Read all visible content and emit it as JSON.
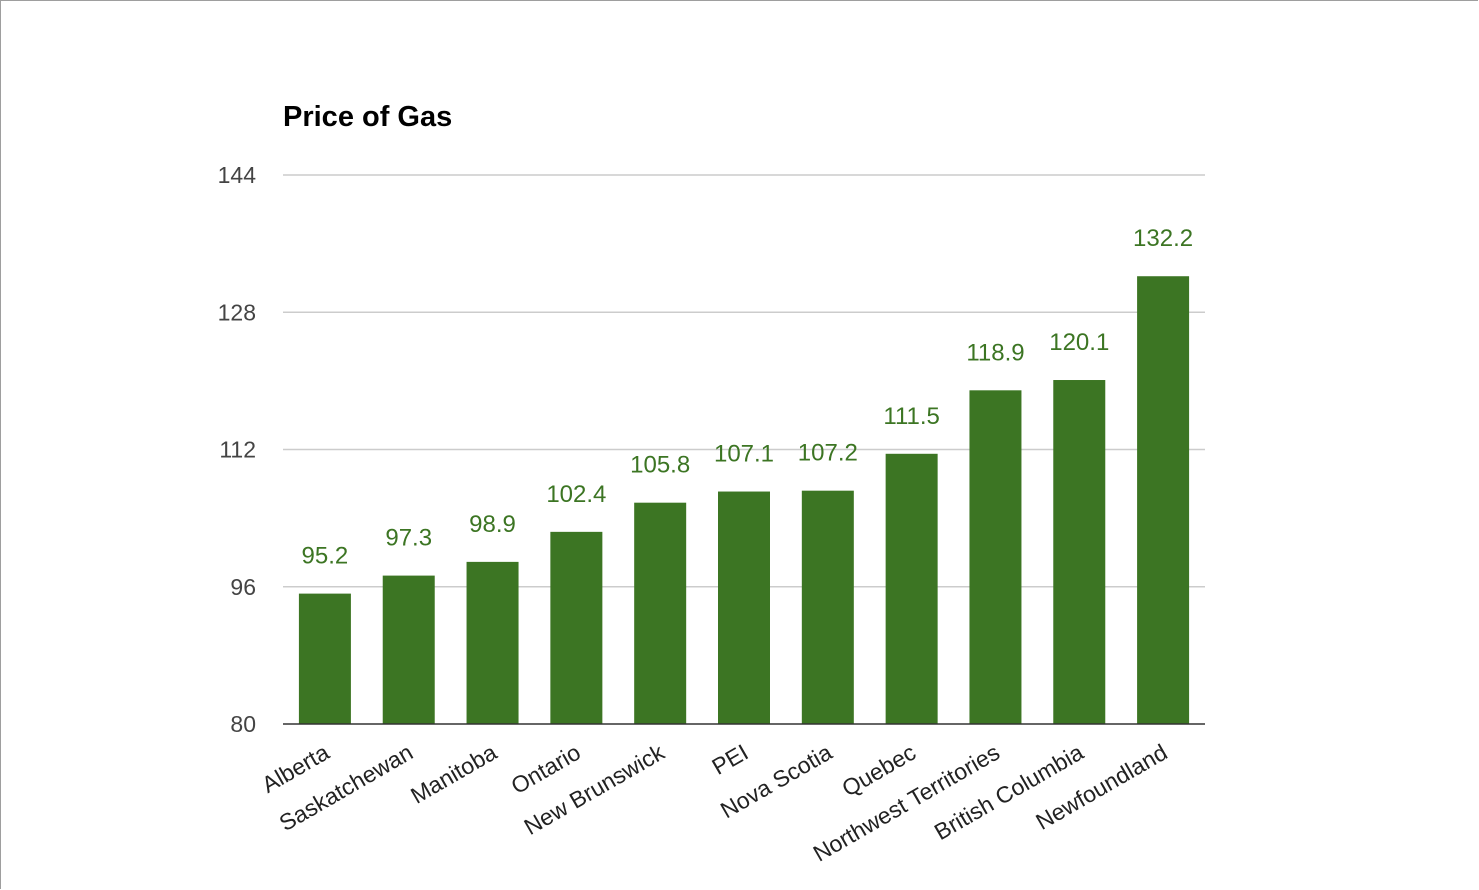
{
  "chart_data": {
    "type": "bar",
    "title": "Price of Gas",
    "xlabel": "",
    "ylabel": "",
    "categories": [
      "Alberta",
      "Saskatchewan",
      "Manitoba",
      "Ontario",
      "New Brunswick",
      "PEI",
      "Nova Scotia",
      "Quebec",
      "Northwest Territories",
      "British Columbia",
      "Newfoundland"
    ],
    "values": [
      95.2,
      97.3,
      98.9,
      102.4,
      105.8,
      107.1,
      107.2,
      111.5,
      118.9,
      120.1,
      132.2
    ],
    "value_labels": [
      "95.2",
      "97.3",
      "98.9",
      "102.4",
      "105.8",
      "107.1",
      "107.2",
      "111.5",
      "118.9",
      "120.1",
      "132.2"
    ],
    "ylim": [
      80,
      144
    ],
    "yticks": [
      80,
      96,
      112,
      128,
      144
    ],
    "ytick_labels": [
      "80",
      "96",
      "112",
      "128",
      "144"
    ],
    "grid": true,
    "legend": "none",
    "bar_color": "#3c7523",
    "value_label_color": "#3c7523",
    "gridline_color": "#cccccc",
    "baseline_color": "#333333"
  }
}
